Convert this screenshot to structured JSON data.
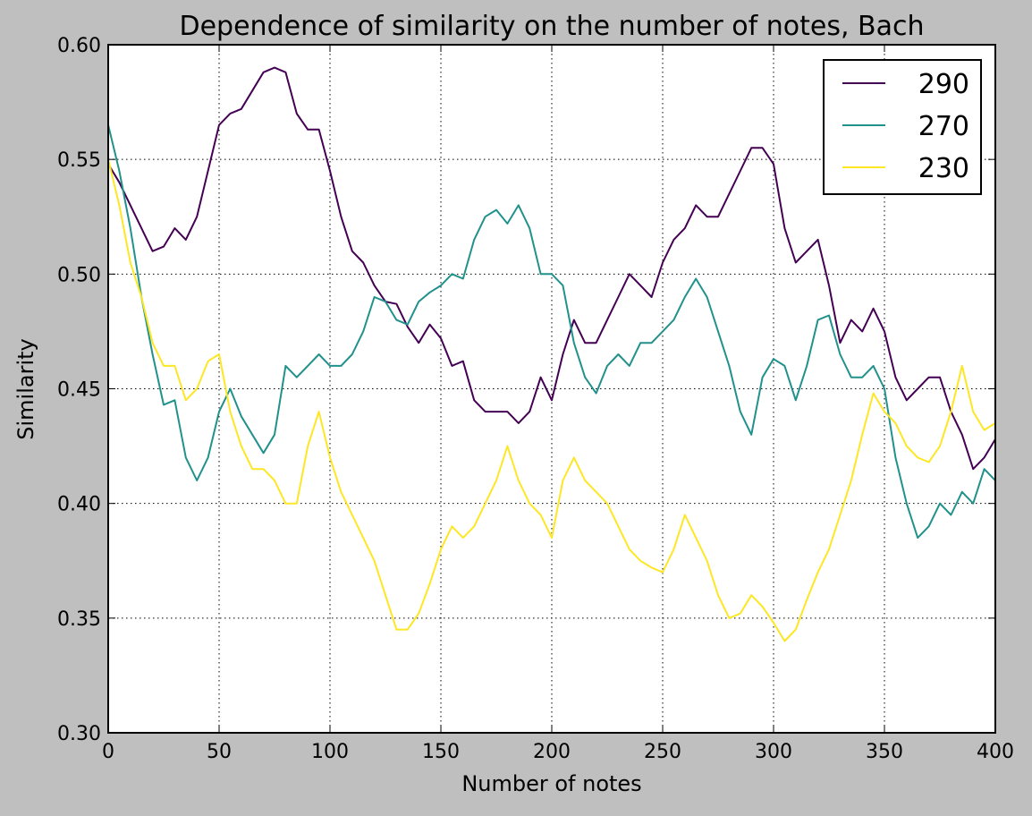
{
  "chart_data": {
    "type": "line",
    "title": "Dependence of similarity on the number of notes, Bach",
    "xlabel": "Number of notes",
    "ylabel": "Similarity",
    "xlim": [
      0,
      400
    ],
    "ylim": [
      0.3,
      0.6
    ],
    "xticks": [
      "0",
      "50",
      "100",
      "150",
      "200",
      "250",
      "300",
      "350",
      "400"
    ],
    "yticks": [
      "0.30",
      "0.35",
      "0.40",
      "0.45",
      "0.50",
      "0.55",
      "0.60"
    ],
    "grid": true,
    "legend_position": "top-right",
    "background": "#bfbfbf",
    "x": [
      0,
      5,
      10,
      15,
      20,
      25,
      30,
      35,
      40,
      45,
      50,
      55,
      60,
      65,
      70,
      75,
      80,
      85,
      90,
      95,
      100,
      105,
      110,
      115,
      120,
      125,
      130,
      135,
      140,
      145,
      150,
      155,
      160,
      165,
      170,
      175,
      180,
      185,
      190,
      195,
      200,
      205,
      210,
      215,
      220,
      225,
      230,
      235,
      240,
      245,
      250,
      255,
      260,
      265,
      270,
      275,
      280,
      285,
      290,
      295,
      300,
      305,
      310,
      315,
      320,
      325,
      330,
      335,
      340,
      345,
      350,
      355,
      360,
      365,
      370,
      375,
      380,
      385,
      390,
      395,
      400
    ],
    "series": [
      {
        "name": "290",
        "color": "#440154",
        "values": [
          0.548,
          0.54,
          0.53,
          0.52,
          0.51,
          0.512,
          0.52,
          0.515,
          0.525,
          0.545,
          0.565,
          0.57,
          0.572,
          0.58,
          0.588,
          0.59,
          0.588,
          0.57,
          0.563,
          0.563,
          0.545,
          0.525,
          0.51,
          0.505,
          0.495,
          0.488,
          0.487,
          0.477,
          0.47,
          0.478,
          0.472,
          0.46,
          0.462,
          0.445,
          0.44,
          0.44,
          0.44,
          0.435,
          0.44,
          0.455,
          0.445,
          0.465,
          0.48,
          0.47,
          0.47,
          0.48,
          0.49,
          0.5,
          0.495,
          0.49,
          0.505,
          0.515,
          0.52,
          0.53,
          0.525,
          0.525,
          0.535,
          0.545,
          0.555,
          0.555,
          0.548,
          0.52,
          0.505,
          0.51,
          0.515,
          0.495,
          0.47,
          0.48,
          0.475,
          0.485,
          0.475,
          0.455,
          0.445,
          0.45,
          0.455,
          0.455,
          0.44,
          0.43,
          0.415,
          0.42,
          0.428
        ]
      },
      {
        "name": "270",
        "color": "#21918c",
        "values": [
          0.565,
          0.545,
          0.52,
          0.49,
          0.465,
          0.443,
          0.445,
          0.42,
          0.41,
          0.42,
          0.44,
          0.45,
          0.438,
          0.43,
          0.422,
          0.43,
          0.46,
          0.455,
          0.46,
          0.465,
          0.46,
          0.46,
          0.465,
          0.475,
          0.49,
          0.488,
          0.48,
          0.478,
          0.488,
          0.492,
          0.495,
          0.5,
          0.498,
          0.515,
          0.525,
          0.528,
          0.522,
          0.53,
          0.52,
          0.5,
          0.5,
          0.495,
          0.47,
          0.455,
          0.448,
          0.46,
          0.465,
          0.46,
          0.47,
          0.47,
          0.475,
          0.48,
          0.49,
          0.498,
          0.49,
          0.475,
          0.46,
          0.44,
          0.43,
          0.455,
          0.463,
          0.46,
          0.445,
          0.46,
          0.48,
          0.482,
          0.465,
          0.455,
          0.455,
          0.46,
          0.45,
          0.42,
          0.4,
          0.385,
          0.39,
          0.4,
          0.395,
          0.405,
          0.4,
          0.415,
          0.41
        ]
      },
      {
        "name": "230",
        "color": "#fde725",
        "values": [
          0.55,
          0.53,
          0.505,
          0.49,
          0.47,
          0.46,
          0.46,
          0.445,
          0.45,
          0.462,
          0.465,
          0.44,
          0.425,
          0.415,
          0.415,
          0.41,
          0.4,
          0.4,
          0.425,
          0.44,
          0.42,
          0.405,
          0.395,
          0.385,
          0.375,
          0.36,
          0.345,
          0.345,
          0.352,
          0.365,
          0.38,
          0.39,
          0.385,
          0.39,
          0.4,
          0.41,
          0.425,
          0.41,
          0.4,
          0.395,
          0.385,
          0.41,
          0.42,
          0.41,
          0.405,
          0.4,
          0.39,
          0.38,
          0.375,
          0.372,
          0.37,
          0.38,
          0.395,
          0.385,
          0.375,
          0.36,
          0.35,
          0.352,
          0.36,
          0.355,
          0.348,
          0.34,
          0.345,
          0.358,
          0.37,
          0.38,
          0.395,
          0.41,
          0.43,
          0.448,
          0.44,
          0.435,
          0.425,
          0.42,
          0.418,
          0.425,
          0.44,
          0.46,
          0.44,
          0.432,
          0.435
        ]
      }
    ]
  }
}
